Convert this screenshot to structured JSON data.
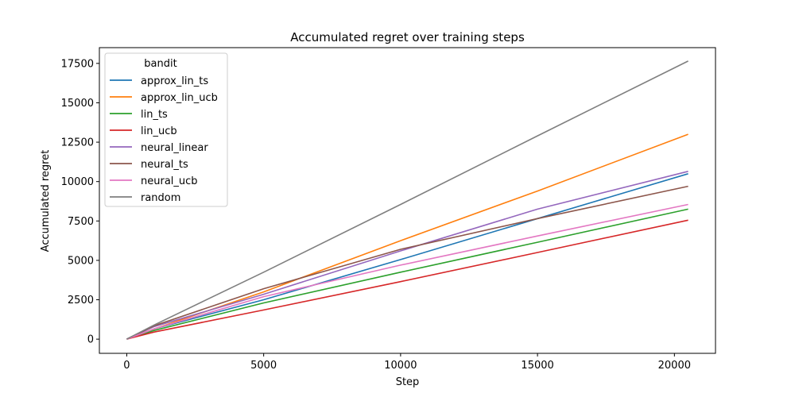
{
  "chart_data": {
    "type": "line",
    "title": "Accumulated regret over training steps",
    "xlabel": "Step",
    "ylabel": "Accumulated regret",
    "xlim": [
      -1000,
      21500
    ],
    "ylim": [
      -900,
      18500
    ],
    "xticks": [
      0,
      5000,
      10000,
      15000,
      20000
    ],
    "xtick_labels": [
      "0",
      "5000",
      "10000",
      "15000",
      "20000"
    ],
    "yticks": [
      0,
      2500,
      5000,
      7500,
      10000,
      12500,
      15000,
      17500
    ],
    "ytick_labels": [
      "0",
      "2500",
      "5000",
      "7500",
      "10000",
      "12500",
      "15000",
      "17500"
    ],
    "grid": false,
    "legend": {
      "title": "bandit",
      "placement": "top-left"
    },
    "series": [
      {
        "name": "approx_lin_ts",
        "color": "#1f77b4",
        "x": [
          0,
          1000,
          5000,
          10000,
          15000,
          20500
        ],
        "y": [
          0,
          650,
          2500,
          5050,
          7650,
          10500
        ]
      },
      {
        "name": "approx_lin_ucb",
        "color": "#ff7f0e",
        "x": [
          0,
          1000,
          5000,
          10000,
          15000,
          20500
        ],
        "y": [
          0,
          650,
          3000,
          6250,
          9400,
          13000
        ]
      },
      {
        "name": "lin_ts",
        "color": "#2ca02c",
        "x": [
          0,
          1000,
          5000,
          10000,
          15000,
          20500
        ],
        "y": [
          0,
          550,
          2300,
          4250,
          6150,
          8250
        ]
      },
      {
        "name": "lin_ucb",
        "color": "#d62728",
        "x": [
          0,
          1000,
          5000,
          10000,
          15000,
          20500
        ],
        "y": [
          0,
          450,
          1850,
          3650,
          5500,
          7550
        ]
      },
      {
        "name": "neural_linear",
        "color": "#9467bd",
        "x": [
          0,
          1000,
          5000,
          10000,
          15000,
          20500
        ],
        "y": [
          0,
          800,
          2850,
          5600,
          8250,
          10650
        ]
      },
      {
        "name": "neural_ts",
        "color": "#8c564b",
        "x": [
          0,
          1000,
          5000,
          10000,
          15000,
          20500
        ],
        "y": [
          0,
          850,
          3200,
          5700,
          7650,
          9700
        ]
      },
      {
        "name": "neural_ucb",
        "color": "#e377c2",
        "x": [
          0,
          1000,
          5000,
          10000,
          15000,
          20500
        ],
        "y": [
          0,
          650,
          2700,
          4700,
          6550,
          8550
        ]
      },
      {
        "name": "random",
        "color": "#7f7f7f",
        "x": [
          0,
          1000,
          5000,
          10000,
          15000,
          20500
        ],
        "y": [
          0,
          900,
          4250,
          8550,
          12900,
          17650
        ]
      }
    ]
  }
}
